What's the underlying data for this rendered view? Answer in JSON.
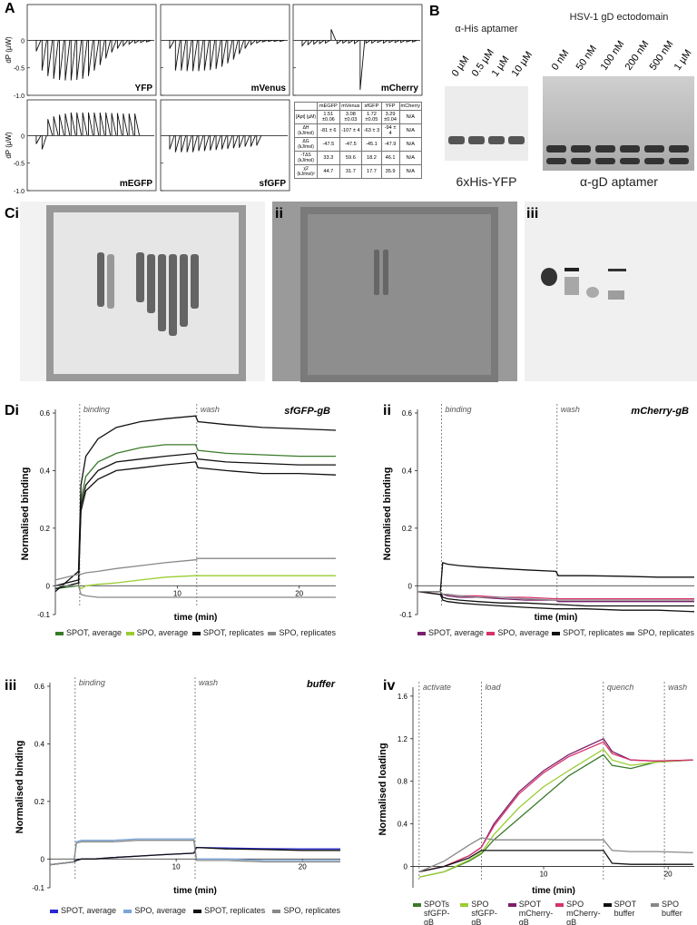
{
  "panel_labels": [
    "A",
    "B",
    "Ci",
    "ii",
    "iii",
    "Di",
    "ii",
    "iii",
    "iv"
  ],
  "itc": {
    "y_label": "dP (µW)",
    "ylim": [
      -1,
      0.65
    ],
    "yticks": [
      0,
      -0.5,
      {
        "value": -1,
        "label": "-1.0"
      }
    ],
    "plots": [
      {
        "name": "YFP",
        "peaks": [
          -0.2,
          -0.55,
          -0.65,
          -0.7,
          -0.72,
          -0.73,
          -0.73,
          -0.72,
          -0.7,
          -0.65,
          -0.55,
          -0.45,
          -0.33,
          -0.22,
          -0.15,
          -0.1,
          -0.07,
          -0.05,
          -0.04,
          -0.03
        ]
      },
      {
        "name": "mVenus",
        "peaks": [
          -0.15,
          -0.55,
          -0.55,
          -0.56,
          -0.56,
          -0.56,
          -0.55,
          -0.54,
          -0.52,
          -0.48,
          -0.42,
          -0.35,
          -0.25,
          -0.15,
          -0.08,
          -0.05,
          -0.03,
          -0.02,
          -0.02,
          -0.02
        ]
      },
      {
        "name": "mCherry",
        "peaks": [
          -0.1,
          -0.08,
          -0.07,
          -0.06,
          -0.05,
          0.2,
          -0.06,
          -0.05,
          -0.05,
          -0.06,
          -0.9,
          -0.05,
          -0.05,
          -0.04,
          -0.05,
          -0.04,
          -0.04,
          -0.04,
          -0.03,
          -0.03
        ]
      },
      {
        "name": "mEGFP",
        "peaks": [
          -0.15,
          -0.25,
          0.3,
          0.35,
          0.38,
          0.4,
          0.42,
          0.42,
          0.42,
          0.42,
          0.42,
          0.42,
          0.42,
          0.41,
          0.41,
          0.4,
          0.4,
          0.4
        ]
      },
      {
        "name": "sfGFP",
        "peaks": [
          -0.25,
          -0.3,
          -0.3,
          -0.3,
          -0.3,
          -0.28,
          -0.28,
          -0.27,
          -0.26,
          -0.25,
          -0.24,
          -0.23,
          -0.22,
          -0.2,
          -0.2,
          -0.18
        ]
      }
    ]
  },
  "itc_table": {
    "columns": [
      "mEGFP",
      "mVenus",
      "sfGFP",
      "YFP",
      "mCherry"
    ],
    "rows": [
      [
        "[Apt] (µM)",
        "1.51 ±0.06",
        "3.08 ±0.03",
        "1.72 ±0.05",
        "3.29 ±0.04",
        "N/A"
      ],
      [
        "ΔH (kJ/mol)",
        "-81 ± 6",
        "-107 ± 4",
        "-63 ± 3",
        "-94 ± 4",
        "N/A"
      ],
      [
        "ΔG (kJ/mol)",
        "-47.5",
        "-47.5",
        "-45.1",
        "-47.9",
        "N/A"
      ],
      [
        "-TΔS (kJ/mol)",
        "33.3",
        "59.6",
        "18.2",
        "46.1",
        "N/A"
      ],
      [
        "χ2 (kJ/mol)²",
        "44.7",
        "31.7",
        "17.7",
        "35.9",
        "N/A"
      ]
    ]
  },
  "gel_b": {
    "left_title": "α-His aptamer",
    "left_lanes": [
      "0 µM",
      "0.5 µM",
      "1 µM",
      "10 µM"
    ],
    "left_caption": "6xHis-YFP",
    "right_title": "HSV-1 gD ectodomain",
    "right_lanes": [
      "0 nM",
      "50 nM",
      "100 nM",
      "200 nM",
      "500 nM",
      "1 µM"
    ],
    "right_caption": "α-gD aptamer"
  },
  "chart_data": [
    {
      "type": "line",
      "title": "sfGFP-gB",
      "y_label": "Normalised binding",
      "x_label": "time (min)",
      "xlim": [
        0,
        23
      ],
      "ylim": [
        -0.1,
        0.6
      ],
      "yticks": [
        0.6,
        0.4,
        0.2,
        0,
        -0.1
      ],
      "xticks": [
        10,
        20
      ],
      "events": [
        {
          "label": "binding",
          "x": 2
        },
        {
          "label": "wash",
          "x": 11.6
        }
      ],
      "x": [
        0,
        1.9,
        2.1,
        2.5,
        3.5,
        5,
        7,
        9,
        11.5,
        11.7,
        14,
        17,
        20,
        23
      ],
      "series": [
        {
          "name": "SPOT, average",
          "color": "#3a7a2a",
          "values": [
            [
              -0.01,
              0,
              0.3,
              0.38,
              0.43,
              0.46,
              0.48,
              0.49,
              0.49,
              0.47,
              0.46,
              0.455,
              0.45,
              0.45
            ]
          ]
        },
        {
          "name": "SPO, average",
          "color": "#9acd32",
          "values": [
            [
              0,
              0,
              -0.01,
              0,
              0.005,
              0.01,
              0.02,
              0.03,
              0.035,
              0.035,
              0.035,
              0.035,
              0.035,
              0.035
            ]
          ]
        },
        {
          "name": "SPOT, replicates",
          "color": "#111111",
          "values": [
            [
              -0.02,
              0.05,
              0.35,
              0.45,
              0.51,
              0.55,
              0.57,
              0.58,
              0.59,
              0.57,
              0.56,
              0.55,
              0.545,
              0.54
            ],
            [
              0,
              0.02,
              0.28,
              0.35,
              0.4,
              0.43,
              0.44,
              0.45,
              0.46,
              0.44,
              0.43,
              0.425,
              0.42,
              0.42
            ],
            [
              -0.01,
              0.01,
              0.26,
              0.33,
              0.37,
              0.4,
              0.41,
              0.42,
              0.43,
              0.41,
              0.4,
              0.39,
              0.39,
              0.385
            ]
          ]
        },
        {
          "name": "SPO, replicates",
          "color": "#888888",
          "values": [
            [
              0.02,
              0.04,
              0.04,
              0.045,
              0.05,
              0.06,
              0.07,
              0.08,
              0.09,
              0.095,
              0.095,
              0.095,
              0.095,
              0.095
            ],
            [
              0,
              0,
              -0.03,
              -0.035,
              -0.04,
              -0.04,
              -0.04,
              -0.04,
              -0.04,
              -0.04,
              -0.04,
              -0.04,
              -0.04,
              -0.04
            ]
          ]
        }
      ]
    },
    {
      "type": "line",
      "title": "mCherry-gB",
      "y_label": "Normalised binding",
      "x_label": "time (min)",
      "xlim": [
        0,
        23
      ],
      "ylim": [
        -0.1,
        0.6
      ],
      "yticks": [
        0.6,
        0.4,
        0.2,
        0,
        -0.1
      ],
      "events": [
        {
          "label": "binding",
          "x": 2
        },
        {
          "label": "wash",
          "x": 11.6
        }
      ],
      "x": [
        0,
        1.9,
        2.1,
        2.5,
        3.5,
        5,
        7,
        9,
        11.5,
        11.7,
        14,
        17,
        20,
        23
      ],
      "series": [
        {
          "name": "SPOT, average",
          "color": "#7b1f6a",
          "values": [
            [
              -0.02,
              -0.03,
              -0.03,
              -0.035,
              -0.04,
              -0.04,
              -0.045,
              -0.05,
              -0.05,
              -0.055,
              -0.055,
              -0.055,
              -0.055,
              -0.055
            ]
          ]
        },
        {
          "name": "SPO, average",
          "color": "#d6336c",
          "values": [
            [
              -0.02,
              -0.02,
              -0.03,
              -0.03,
              -0.035,
              -0.035,
              -0.04,
              -0.04,
              -0.045,
              -0.045,
              -0.045,
              -0.045,
              -0.045,
              -0.045
            ]
          ]
        },
        {
          "name": "SPOT, replicates",
          "color": "#111111",
          "values": [
            [
              -0.02,
              -0.02,
              0.08,
              0.075,
              0.07,
              0.065,
              0.06,
              0.055,
              0.05,
              0.035,
              0.035,
              0.033,
              0.03,
              0.03
            ],
            [
              -0.02,
              -0.03,
              -0.05,
              -0.055,
              -0.06,
              -0.065,
              -0.07,
              -0.075,
              -0.08,
              -0.08,
              -0.08,
              -0.085,
              -0.085,
              -0.09
            ],
            [
              -0.02,
              -0.02,
              -0.04,
              -0.045,
              -0.05,
              -0.055,
              -0.06,
              -0.06,
              -0.065,
              -0.065,
              -0.07,
              -0.07,
              -0.07,
              -0.07
            ]
          ]
        },
        {
          "name": "SPO, replicates",
          "color": "#888888",
          "values": [
            [
              -0.02,
              -0.02,
              -0.03,
              -0.03,
              -0.035,
              -0.04,
              -0.04,
              -0.045,
              -0.05,
              -0.05,
              -0.05,
              -0.05,
              -0.05,
              -0.05
            ]
          ]
        }
      ]
    },
    {
      "type": "line",
      "title": "buffer",
      "y_label": "Normalised binding",
      "x_label": "time (min)",
      "xlim": [
        0,
        23
      ],
      "ylim": [
        -0.1,
        0.6
      ],
      "yticks": [
        0.6,
        0.4,
        0.2,
        0,
        -0.1
      ],
      "xticks": [
        10,
        20
      ],
      "events": [
        {
          "label": "binding",
          "x": 2
        },
        {
          "label": "wash",
          "x": 11.5
        }
      ],
      "x": [
        0,
        1.9,
        2.1,
        2.5,
        3.5,
        5,
        7,
        9,
        11.4,
        11.6,
        14,
        17,
        20,
        23
      ],
      "series": [
        {
          "name": "SPOT, average",
          "color": "#2a2ad0",
          "values": [
            [
              -0.02,
              -0.01,
              -0.005,
              0,
              0,
              0.005,
              0.01,
              0.015,
              0.02,
              0.04,
              0.038,
              0.036,
              0.035,
              0.035
            ]
          ]
        },
        {
          "name": "SPO, average",
          "color": "#7aa6d8",
          "values": [
            [
              -0.02,
              -0.01,
              0.06,
              0.065,
              0.065,
              0.065,
              0.07,
              0.07,
              0.07,
              0,
              0,
              -0.005,
              -0.005,
              -0.005
            ]
          ]
        },
        {
          "name": "SPOT, replicates",
          "color": "#111111",
          "values": [
            [
              -0.02,
              -0.01,
              -0.005,
              0,
              0,
              0.005,
              0.01,
              0.015,
              0.02,
              0.04,
              0.035,
              0.033,
              0.03,
              0.03
            ]
          ]
        },
        {
          "name": "SPO, replicates",
          "color": "#888888",
          "values": [
            [
              -0.02,
              -0.01,
              0.055,
              0.06,
              0.06,
              0.06,
              0.065,
              0.065,
              0.065,
              -0.005,
              -0.005,
              -0.01,
              -0.01,
              -0.01
            ]
          ]
        }
      ]
    },
    {
      "type": "line",
      "y_label": "Normalised loading",
      "x_label": "time (min)",
      "xlim": [
        -0.5,
        22.1
      ],
      "ylim": [
        -0.2,
        1.65
      ],
      "yticks": [
        1.6,
        1.2,
        0.8,
        0.4,
        0
      ],
      "xticks": [
        10,
        20
      ],
      "events": [
        {
          "label": "activate",
          "x": 0
        },
        {
          "label": "load",
          "x": 5
        },
        {
          "label": "quench",
          "x": 14.8
        },
        {
          "label": "wash",
          "x": 19.7
        }
      ],
      "x": [
        0,
        2,
        4,
        5,
        6,
        8,
        10,
        12,
        14.8,
        15.5,
        17,
        19,
        22
      ],
      "series": [
        {
          "name": "SPOTs sfGFP-gB",
          "color": "#3a7a2a",
          "values": [
            [
              -0.1,
              -0.05,
              0.05,
              0.12,
              0.25,
              0.45,
              0.65,
              0.85,
              1.05,
              0.95,
              0.92,
              0.98,
              1.0
            ]
          ]
        },
        {
          "name": "SPO sfGFP-gB",
          "color": "#9acd32",
          "values": [
            [
              -0.1,
              -0.05,
              0.06,
              0.13,
              0.3,
              0.55,
              0.75,
              0.9,
              1.1,
              1.0,
              0.95,
              0.98,
              1.0
            ]
          ]
        },
        {
          "name": "SPOT mCherry-gB",
          "color": "#7b1f6a",
          "values": [
            [
              -0.05,
              0,
              0.1,
              0.18,
              0.4,
              0.7,
              0.9,
              1.05,
              1.2,
              1.08,
              1.0,
              0.99,
              1.0
            ]
          ]
        },
        {
          "name": "SPO mCherry-gB",
          "color": "#d6336c",
          "values": [
            [
              -0.05,
              0,
              0.1,
              0.18,
              0.38,
              0.68,
              0.88,
              1.03,
              1.17,
              1.06,
              1.0,
              0.99,
              1.0
            ]
          ]
        },
        {
          "name": "SPOT buffer",
          "color": "#111111",
          "values": [
            [
              -0.05,
              0,
              0.08,
              0.15,
              0.15,
              0.15,
              0.15,
              0.15,
              0.15,
              0.03,
              0.02,
              0.02,
              0.02
            ]
          ]
        },
        {
          "name": "SPO buffer",
          "color": "#888888",
          "values": [
            [
              -0.05,
              0.05,
              0.2,
              0.27,
              0.25,
              0.25,
              0.25,
              0.25,
              0.25,
              0.15,
              0.14,
              0.14,
              0.13
            ]
          ]
        }
      ]
    }
  ]
}
